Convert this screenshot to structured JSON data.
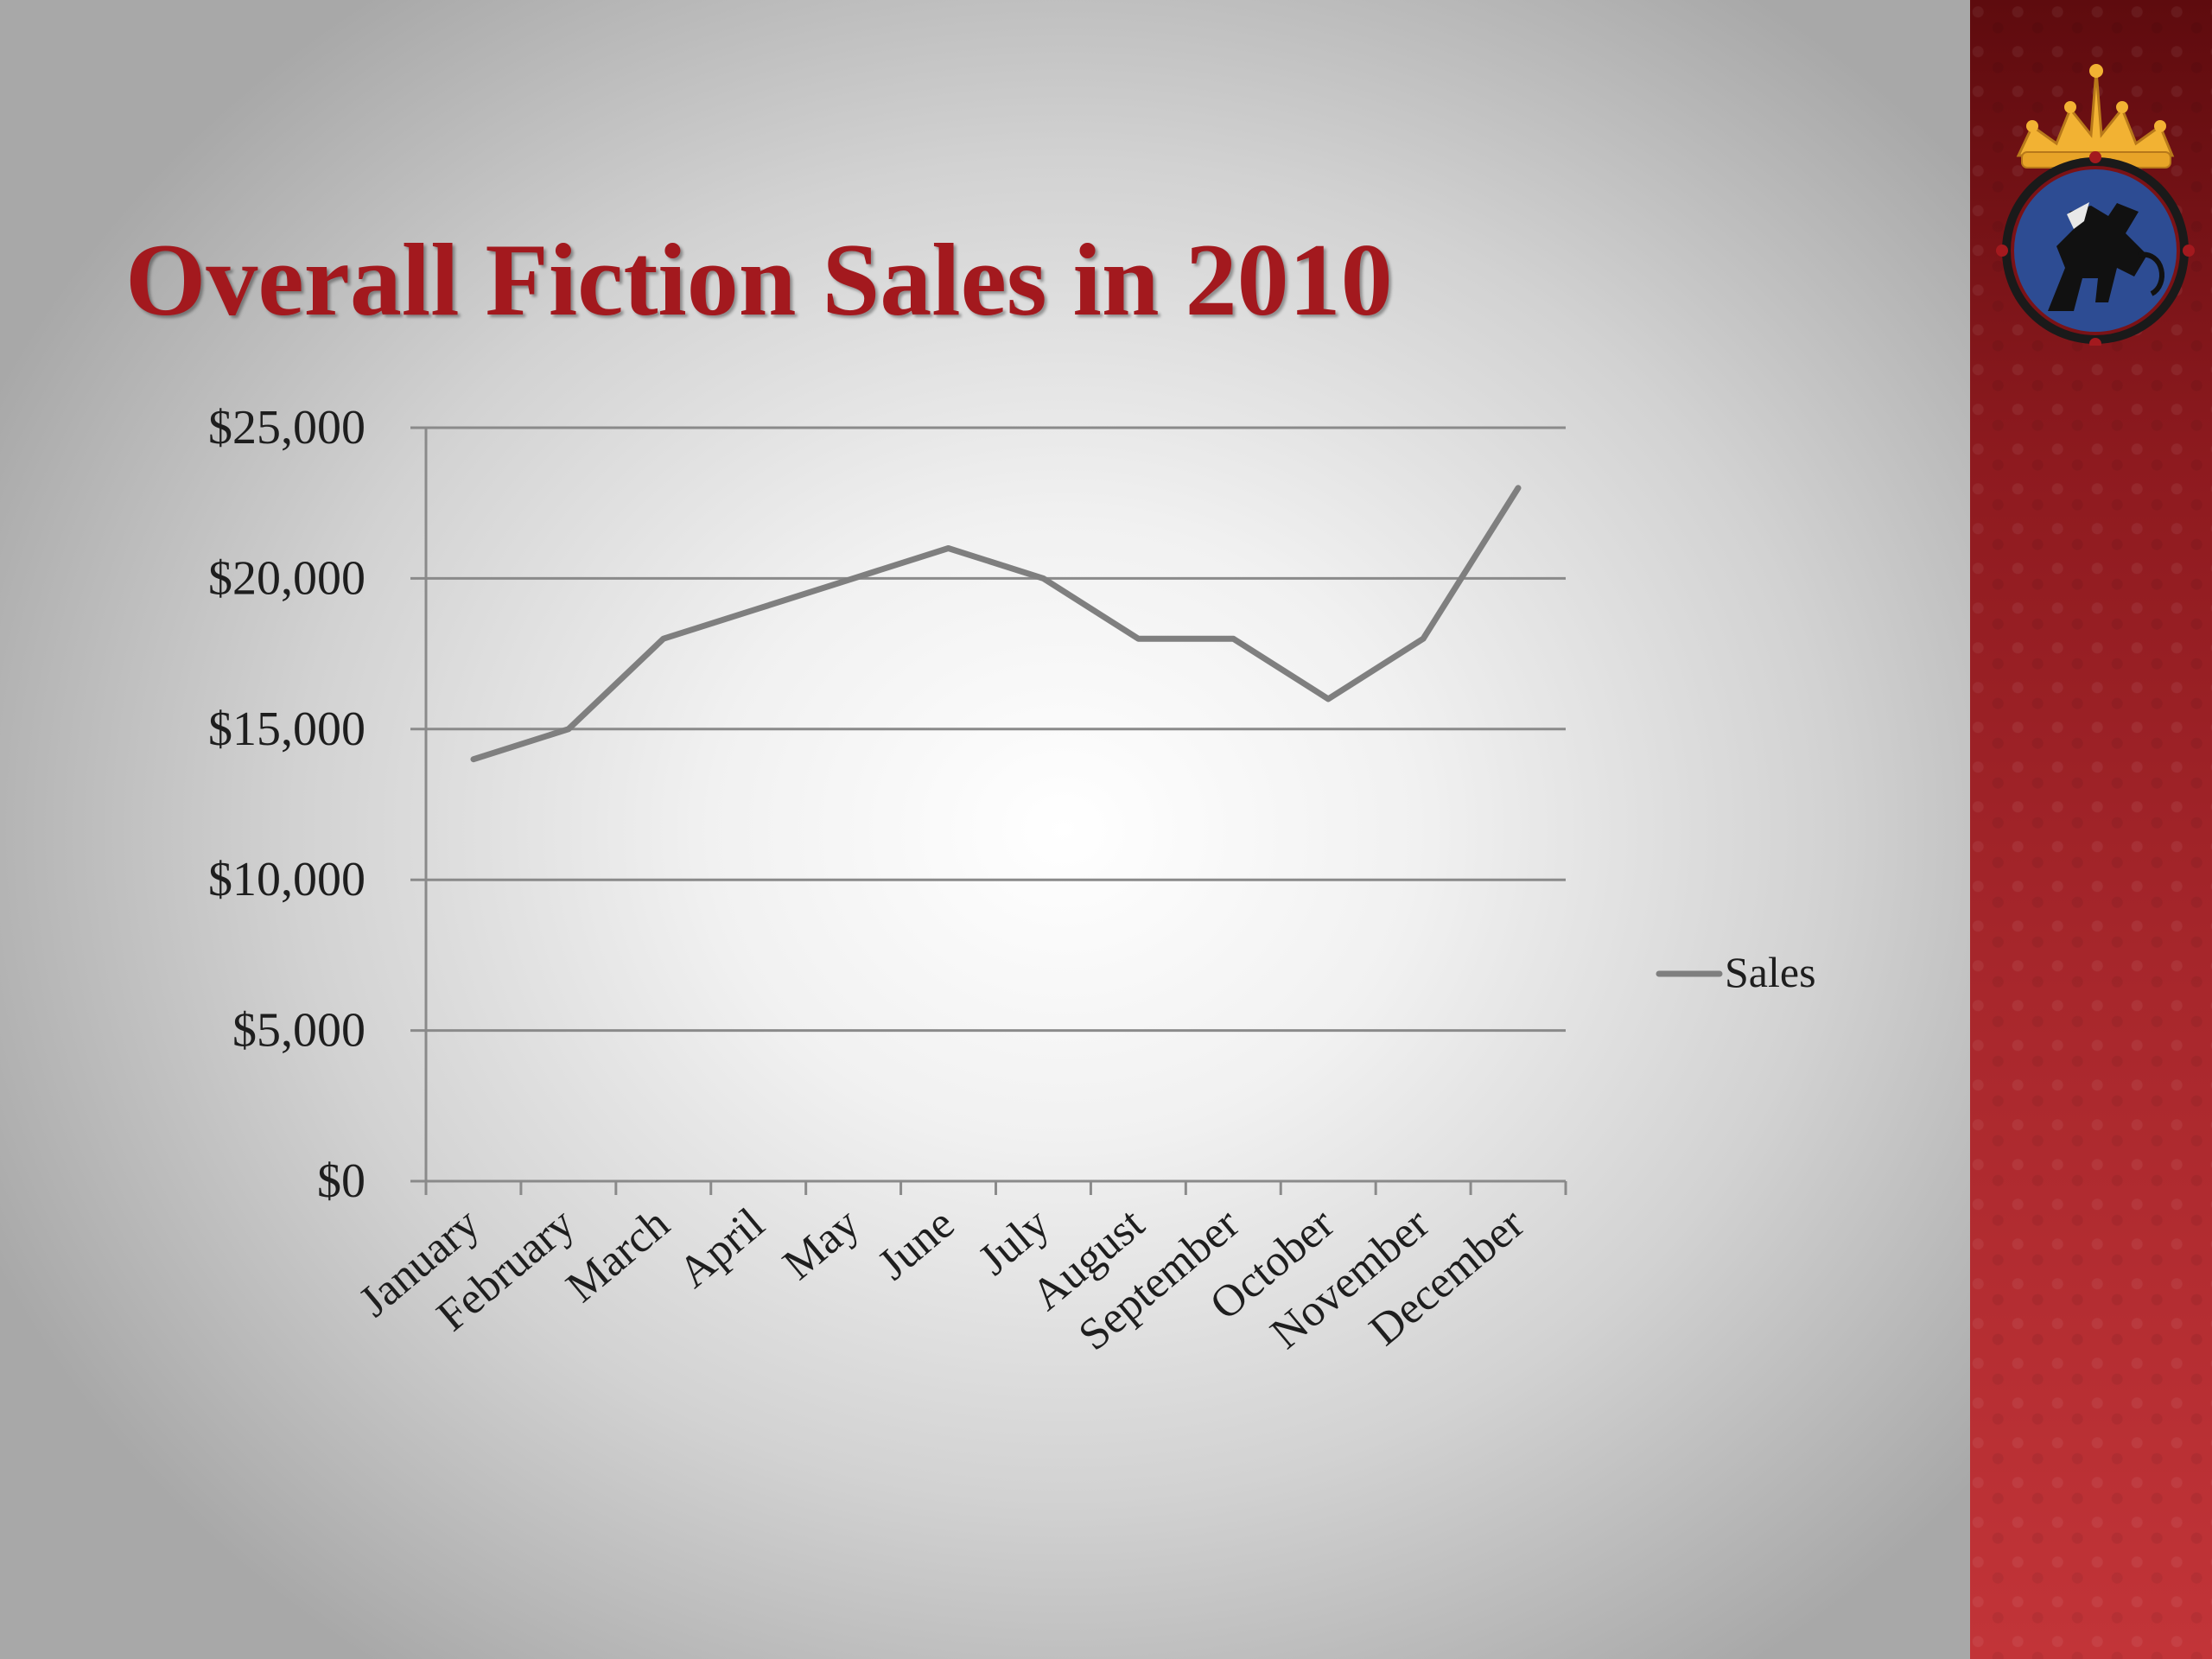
{
  "slide": {
    "title": "Overall Fiction Sales in 2010"
  },
  "emblem": {
    "icon": "crowned-griffin-emblem-icon",
    "colors": {
      "crown": "#f2b233",
      "shield": "#2d4c93",
      "ring": "#1a1a1a"
    }
  },
  "colors": {
    "title": "#a3191e",
    "line": "#7f7f7f",
    "side_band": "#a8272c"
  },
  "chart_data": {
    "type": "line",
    "title": "",
    "xlabel": "",
    "ylabel": "",
    "categories": [
      "January",
      "February",
      "March",
      "April",
      "May",
      "June",
      "July",
      "August",
      "September",
      "October",
      "November",
      "December"
    ],
    "series": [
      {
        "name": "Sales",
        "values": [
          14000,
          15000,
          18000,
          19000,
          20000,
          21000,
          20000,
          18000,
          18000,
          16000,
          18000,
          23000
        ]
      }
    ],
    "ylim": [
      0,
      25000
    ],
    "yticks": [
      0,
      5000,
      10000,
      15000,
      20000,
      25000
    ],
    "ytick_labels": [
      "$0",
      "$5,000",
      "$10,000",
      "$15,000",
      "$20,000",
      "$25,000"
    ],
    "grid": true,
    "legend_position": "right"
  }
}
